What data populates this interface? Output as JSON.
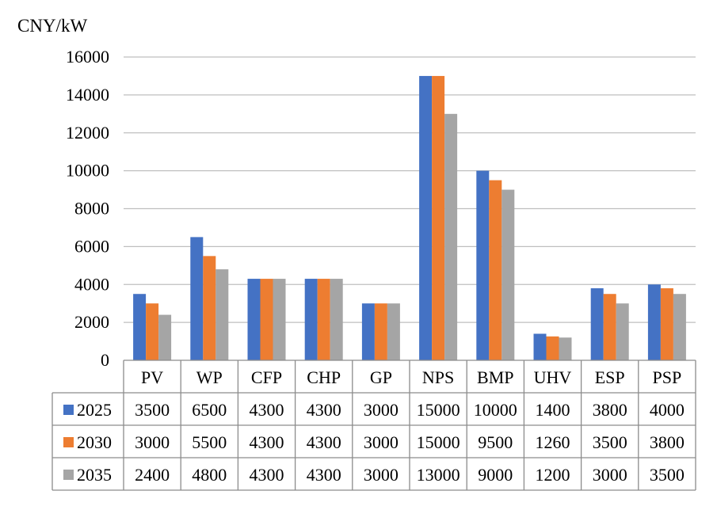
{
  "chart_data": {
    "type": "bar",
    "ylabel": "CNY/kW",
    "ylim": [
      0,
      16000
    ],
    "yticks": [
      0,
      2000,
      4000,
      6000,
      8000,
      10000,
      12000,
      14000,
      16000
    ],
    "grid": true,
    "legend": "data-table-left",
    "categories": [
      "PV",
      "WP",
      "CFP",
      "CHP",
      "GP",
      "NPS",
      "BMP",
      "UHV",
      "ESP",
      "PSP"
    ],
    "series": [
      {
        "name": "2025",
        "color": "#4472C4",
        "values": [
          3500,
          6500,
          4300,
          4300,
          3000,
          15000,
          10000,
          1400,
          3800,
          4000
        ]
      },
      {
        "name": "2030",
        "color": "#ED7D31",
        "values": [
          3000,
          5500,
          4300,
          4300,
          3000,
          15000,
          9500,
          1260,
          3500,
          3800
        ]
      },
      {
        "name": "2035",
        "color": "#A5A5A5",
        "values": [
          2400,
          4800,
          4300,
          4300,
          3000,
          13000,
          9000,
          1200,
          3000,
          3500
        ]
      }
    ]
  }
}
